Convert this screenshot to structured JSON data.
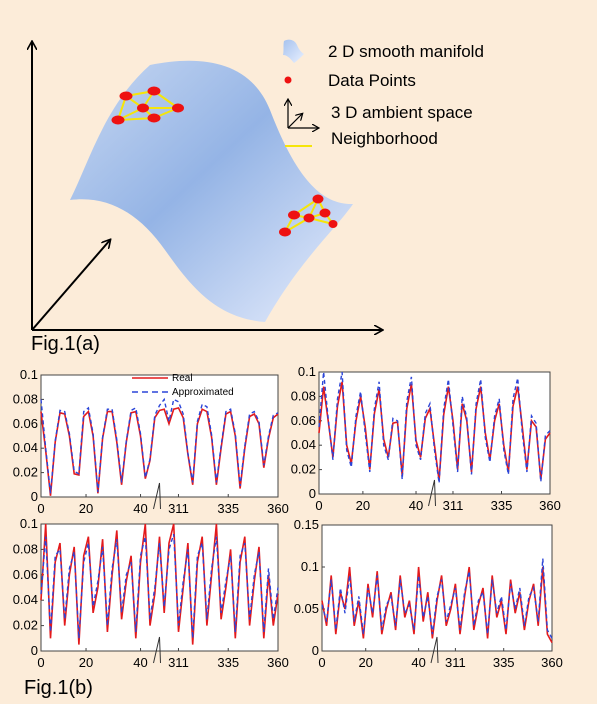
{
  "fig_a": {
    "label": "Fig.1(a)",
    "legend": [
      {
        "icon": "manifold-patch-icon",
        "text": "2 D smooth manifold"
      },
      {
        "icon": "red-dot-icon",
        "text": "Data Points"
      },
      {
        "icon": "axes-icon",
        "text": "3 D ambient space"
      },
      {
        "icon": "yellow-line-icon",
        "text": "Neighborhood"
      }
    ]
  },
  "fig_b": {
    "label": "Fig.1(b)",
    "legend": {
      "real": "Real",
      "approx": "Approximated"
    },
    "colors": {
      "real": "#e31a1c",
      "approx": "#2b45d8"
    }
  },
  "chart_data": [
    {
      "type": "line",
      "id": "top-left",
      "xticks": [
        "0",
        "20",
        "40",
        "311",
        "335",
        "360"
      ],
      "yticks": [
        "0",
        "0.02",
        "0.04",
        "0.06",
        "0.08",
        "0.1"
      ],
      "ylim": [
        0,
        0.1
      ],
      "series": [
        {
          "name": "Real",
          "values": [
            0.07,
            0.038,
            0.001,
            0.045,
            0.069,
            0.068,
            0.05,
            0.019,
            0.018,
            0.066,
            0.07,
            0.05,
            0.003,
            0.048,
            0.07,
            0.07,
            0.045,
            0.01,
            0.045,
            0.069,
            0.07,
            0.05,
            0.015,
            0.03,
            0.065,
            0.071,
            0.072,
            0.06,
            0.072,
            0.073,
            0.065,
            0.035,
            0.01,
            0.06,
            0.072,
            0.07,
            0.049,
            0.01,
            0.04,
            0.068,
            0.07,
            0.05,
            0.007,
            0.04,
            0.066,
            0.068,
            0.06,
            0.024,
            0.048,
            0.065,
            0.068
          ]
        },
        {
          "name": "Approximated",
          "values": [
            0.08,
            0.04,
            0.003,
            0.046,
            0.071,
            0.07,
            0.052,
            0.021,
            0.019,
            0.07,
            0.073,
            0.052,
            0.004,
            0.049,
            0.072,
            0.072,
            0.047,
            0.012,
            0.046,
            0.071,
            0.073,
            0.052,
            0.016,
            0.031,
            0.067,
            0.075,
            0.08,
            0.062,
            0.08,
            0.078,
            0.068,
            0.036,
            0.012,
            0.062,
            0.076,
            0.074,
            0.051,
            0.012,
            0.042,
            0.07,
            0.072,
            0.052,
            0.009,
            0.042,
            0.068,
            0.07,
            0.062,
            0.026,
            0.05,
            0.067,
            0.069
          ]
        }
      ]
    },
    {
      "type": "line",
      "id": "top-right",
      "xticks": [
        "0",
        "20",
        "40",
        "311",
        "335",
        "360"
      ],
      "yticks": [
        "0",
        "0.02",
        "0.04",
        "0.06",
        "0.08",
        "0.1"
      ],
      "ylim": [
        0,
        0.1
      ],
      "series": [
        {
          "name": "Real",
          "values": [
            0.05,
            0.088,
            0.06,
            0.03,
            0.072,
            0.092,
            0.04,
            0.025,
            0.06,
            0.08,
            0.055,
            0.02,
            0.066,
            0.086,
            0.045,
            0.03,
            0.058,
            0.059,
            0.015,
            0.07,
            0.09,
            0.044,
            0.03,
            0.062,
            0.07,
            0.04,
            0.011,
            0.065,
            0.088,
            0.06,
            0.02,
            0.074,
            0.06,
            0.018,
            0.07,
            0.088,
            0.05,
            0.028,
            0.06,
            0.074,
            0.04,
            0.018,
            0.072,
            0.088,
            0.055,
            0.02,
            0.06,
            0.055,
            0.012,
            0.045,
            0.05
          ]
        },
        {
          "name": "Approximated",
          "values": [
            0.055,
            0.1,
            0.062,
            0.028,
            0.078,
            0.1,
            0.036,
            0.022,
            0.064,
            0.084,
            0.05,
            0.018,
            0.07,
            0.092,
            0.04,
            0.028,
            0.062,
            0.06,
            0.012,
            0.076,
            0.096,
            0.04,
            0.028,
            0.066,
            0.074,
            0.036,
            0.009,
            0.07,
            0.094,
            0.056,
            0.018,
            0.08,
            0.062,
            0.016,
            0.074,
            0.094,
            0.046,
            0.026,
            0.064,
            0.078,
            0.036,
            0.016,
            0.078,
            0.095,
            0.05,
            0.018,
            0.064,
            0.058,
            0.01,
            0.048,
            0.052
          ]
        }
      ]
    },
    {
      "type": "line",
      "id": "bottom-left",
      "xticks": [
        "0",
        "20",
        "40",
        "311",
        "335",
        "360"
      ],
      "yticks": [
        "0",
        "0.02",
        "0.04",
        "0.06",
        "0.08",
        "0.1"
      ],
      "ylim": [
        0,
        0.1
      ],
      "series": [
        {
          "name": "Real",
          "values": [
            0.04,
            0.1,
            0.01,
            0.07,
            0.085,
            0.02,
            0.06,
            0.082,
            0.005,
            0.075,
            0.09,
            0.03,
            0.05,
            0.088,
            0.015,
            0.06,
            0.095,
            0.025,
            0.055,
            0.075,
            0.01,
            0.07,
            0.1,
            0.02,
            0.045,
            0.09,
            0.03,
            0.085,
            0.1,
            0.015,
            0.05,
            0.085,
            0.005,
            0.07,
            0.09,
            0.02,
            0.06,
            0.1,
            0.025,
            0.05,
            0.08,
            0.01,
            0.07,
            0.09,
            0.02,
            0.055,
            0.082,
            0.01,
            0.06,
            0.02,
            0.045
          ]
        },
        {
          "name": "Approximated",
          "values": [
            0.045,
            0.09,
            0.015,
            0.075,
            0.08,
            0.025,
            0.065,
            0.078,
            0.01,
            0.07,
            0.085,
            0.035,
            0.055,
            0.082,
            0.02,
            0.065,
            0.088,
            0.03,
            0.06,
            0.07,
            0.015,
            0.075,
            0.09,
            0.025,
            0.05,
            0.085,
            0.035,
            0.08,
            0.092,
            0.02,
            0.055,
            0.08,
            0.01,
            0.075,
            0.085,
            0.025,
            0.065,
            0.09,
            0.03,
            0.055,
            0.075,
            0.015,
            0.075,
            0.085,
            0.025,
            0.06,
            0.078,
            0.015,
            0.065,
            0.025,
            0.05
          ]
        }
      ]
    },
    {
      "type": "line",
      "id": "bottom-right",
      "xticks": [
        "0",
        "20",
        "40",
        "311",
        "335",
        "360"
      ],
      "yticks": [
        "0",
        "0.05",
        "0.1",
        "0.15"
      ],
      "ylim": [
        0,
        0.15
      ],
      "series": [
        {
          "name": "Real",
          "values": [
            0.06,
            0.03,
            0.09,
            0.02,
            0.07,
            0.05,
            0.1,
            0.03,
            0.06,
            0.015,
            0.08,
            0.04,
            0.095,
            0.02,
            0.05,
            0.07,
            0.025,
            0.09,
            0.04,
            0.06,
            0.02,
            0.1,
            0.035,
            0.07,
            0.015,
            0.06,
            0.09,
            0.03,
            0.05,
            0.08,
            0.02,
            0.065,
            0.1,
            0.025,
            0.055,
            0.075,
            0.015,
            0.09,
            0.04,
            0.06,
            0.02,
            0.085,
            0.045,
            0.07,
            0.025,
            0.06,
            0.08,
            0.03,
            0.1,
            0.02,
            0.01
          ]
        },
        {
          "name": "Approximated",
          "values": [
            0.055,
            0.035,
            0.085,
            0.025,
            0.075,
            0.045,
            0.09,
            0.035,
            0.065,
            0.02,
            0.075,
            0.045,
            0.09,
            0.025,
            0.055,
            0.065,
            0.03,
            0.085,
            0.045,
            0.055,
            0.025,
            0.09,
            0.04,
            0.065,
            0.02,
            0.065,
            0.085,
            0.035,
            0.055,
            0.075,
            0.025,
            0.07,
            0.095,
            0.03,
            0.06,
            0.07,
            0.02,
            0.085,
            0.045,
            0.065,
            0.025,
            0.08,
            0.05,
            0.075,
            0.03,
            0.065,
            0.075,
            0.035,
            0.11,
            0.025,
            0.015
          ]
        }
      ]
    }
  ]
}
